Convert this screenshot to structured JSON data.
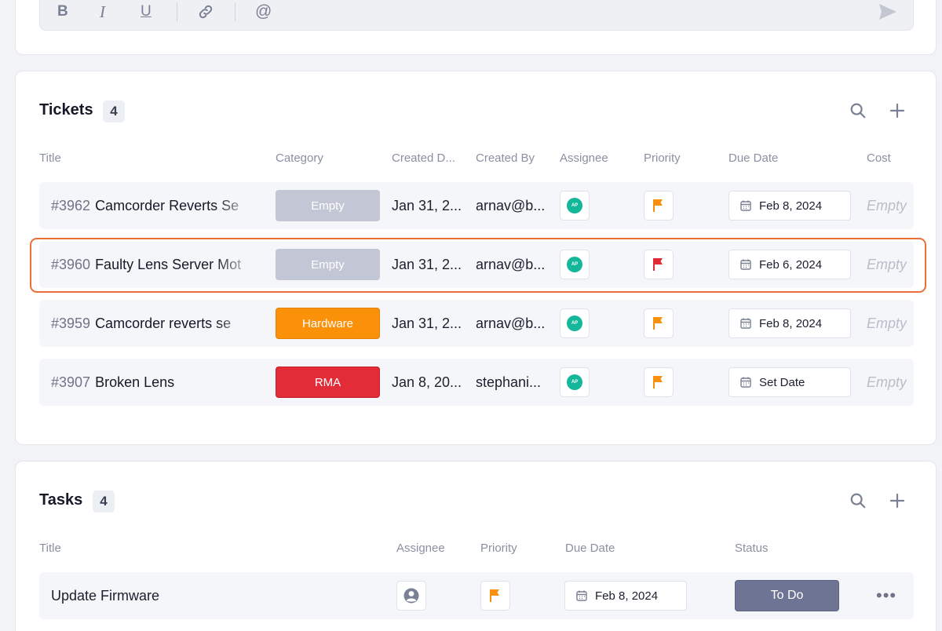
{
  "composer": {
    "bold_label": "B",
    "italic_label": "I",
    "underline_label": "U",
    "mention_label": "@",
    "icons": [
      "bold-icon",
      "italic-icon",
      "underline-icon",
      "link-icon",
      "at-mention-icon",
      "send-icon"
    ]
  },
  "tickets": {
    "title": "Tickets",
    "count": "4",
    "columns": [
      "Title",
      "Category",
      "Created D...",
      "Created By",
      "Assignee",
      "Priority",
      "Due Date",
      "Cost"
    ],
    "rows": [
      {
        "number": "#3962",
        "title": "Camcorder Reverts Se",
        "category": "Empty",
        "category_color": "#c2c6d5",
        "created_date": "Jan 31, 2...",
        "created_by": "arnav@b...",
        "assignee_initials": "AP",
        "priority_color": "#f7900c",
        "due_date": "Feb 8, 2024",
        "cost": "Empty"
      },
      {
        "number": "#3960",
        "title": "Faulty Lens Server Mot",
        "category": "Empty",
        "category_color": "#c2c6d5",
        "created_date": "Jan 31, 2...",
        "created_by": "arnav@b...",
        "assignee_initials": "AP",
        "priority_color": "#e02b37",
        "due_date": "Feb 6, 2024",
        "cost": "Empty"
      },
      {
        "number": "#3959",
        "title": "Camcorder reverts se",
        "category": "Hardware",
        "category_color": "#fb9109",
        "created_date": "Jan 31, 2...",
        "created_by": "arnav@b...",
        "assignee_initials": "AP",
        "priority_color": "#f7900c",
        "due_date": "Feb 8, 2024",
        "cost": "Empty"
      },
      {
        "number": "#3907",
        "title": "Broken Lens",
        "category": "RMA",
        "category_color": "#e22d38",
        "created_date": "Jan 8, 20...",
        "created_by": "stephani...",
        "assignee_initials": "AP",
        "priority_color": "#f7900c",
        "due_date": "Set Date",
        "cost": "Empty"
      }
    ]
  },
  "tasks": {
    "title": "Tasks",
    "count": "4",
    "columns": [
      "Title",
      "Assignee",
      "Priority",
      "Due Date",
      "Status"
    ],
    "rows": [
      {
        "title": "Update Firmware",
        "priority_color": "#f7900c",
        "due_date": "Feb 8, 2024",
        "status": "To Do",
        "more": "•••"
      }
    ]
  },
  "colors": {
    "highlight": "#ec6f39",
    "accent_teal": "#14b79a"
  }
}
